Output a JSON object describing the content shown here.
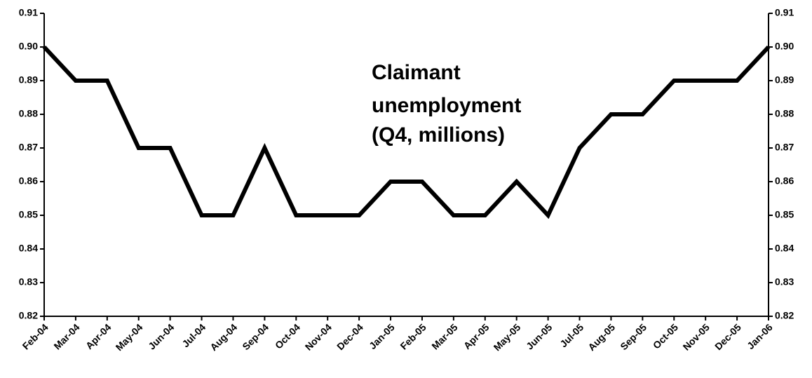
{
  "chart_data": {
    "type": "line",
    "annotation": [
      "Claimant",
      "unemployment",
      "(Q4, millions)"
    ],
    "categories": [
      "Feb-04",
      "Mar-04",
      "Apr-04",
      "May-04",
      "Jun-04",
      "Jul-04",
      "Aug-04",
      "Sep-04",
      "Oct-04",
      "Nov-04",
      "Dec-04",
      "Jan-05",
      "Feb-05",
      "Mar-05",
      "Apr-05",
      "May-05",
      "Jun-05",
      "Jul-05",
      "Aug-05",
      "Sep-05",
      "Oct-05",
      "Nov-05",
      "Dec-05",
      "Jan-06"
    ],
    "values": [
      0.9,
      0.89,
      0.89,
      0.87,
      0.87,
      0.85,
      0.85,
      0.87,
      0.85,
      0.85,
      0.85,
      0.86,
      0.86,
      0.85,
      0.85,
      0.86,
      0.85,
      0.87,
      0.88,
      0.88,
      0.89,
      0.89,
      0.89,
      0.9
    ],
    "color": "#000000",
    "ylim": [
      0.82,
      0.91
    ],
    "yticks": [
      0.82,
      0.83,
      0.84,
      0.85,
      0.86,
      0.87,
      0.88,
      0.89,
      {
        "value": 0.9,
        "label": "0.90"
      },
      0.91
    ],
    "y2lim": [
      0.82,
      0.91
    ],
    "y2ticks": [
      0.82,
      0.83,
      0.84,
      0.85,
      0.86,
      0.87,
      0.88,
      0.89,
      {
        "value": 0.9,
        "label": "0.90"
      },
      0.91
    ],
    "grid": false
  }
}
